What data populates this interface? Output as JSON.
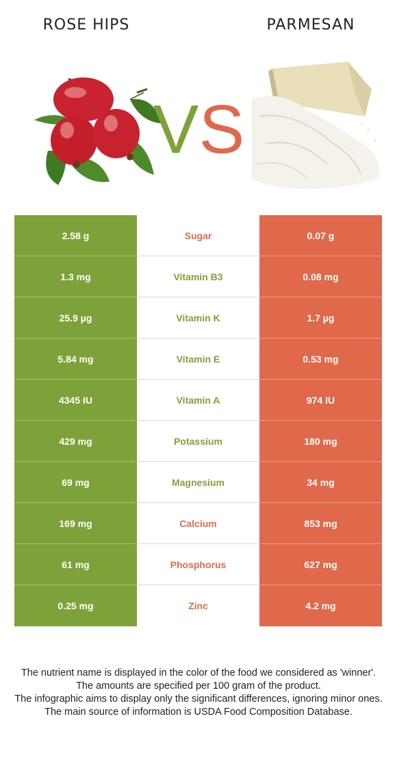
{
  "header": {
    "left_food": "ROSE HIPS",
    "right_food": "PARMESAN",
    "vs_v": "V",
    "vs_s": "S"
  },
  "colors": {
    "left_food": "#7ea23a",
    "right_food": "#e0694b"
  },
  "rows": [
    {
      "nutrient": "Sugar",
      "left": "2.58 g",
      "right": "0.07 g",
      "winner": "right"
    },
    {
      "nutrient": "Vitamin B3",
      "left": "1.3 mg",
      "right": "0.08 mg",
      "winner": "left"
    },
    {
      "nutrient": "Vitamin K",
      "left": "25.9 µg",
      "right": "1.7 µg",
      "winner": "left"
    },
    {
      "nutrient": "Vitamin E",
      "left": "5.84 mg",
      "right": "0.53 mg",
      "winner": "left"
    },
    {
      "nutrient": "Vitamin A",
      "left": "4345 IU",
      "right": "974 IU",
      "winner": "left"
    },
    {
      "nutrient": "Potassium",
      "left": "429 mg",
      "right": "180 mg",
      "winner": "left"
    },
    {
      "nutrient": "Magnesium",
      "left": "69 mg",
      "right": "34 mg",
      "winner": "left"
    },
    {
      "nutrient": "Calcium",
      "left": "169 mg",
      "right": "853 mg",
      "winner": "right"
    },
    {
      "nutrient": "Phosphorus",
      "left": "61 mg",
      "right": "627 mg",
      "winner": "right"
    },
    {
      "nutrient": "Zinc",
      "left": "0.25 mg",
      "right": "4.2 mg",
      "winner": "right"
    }
  ],
  "footer": {
    "line1": "The nutrient name is displayed in the color of the food we considered as 'winner'.",
    "line2": "The amounts are specified per 100 gram of the product.",
    "line3": "The infographic aims to display only the significant differences, ignoring minor ones.",
    "line4": "The main source of information is USDA Food Composition Database."
  }
}
